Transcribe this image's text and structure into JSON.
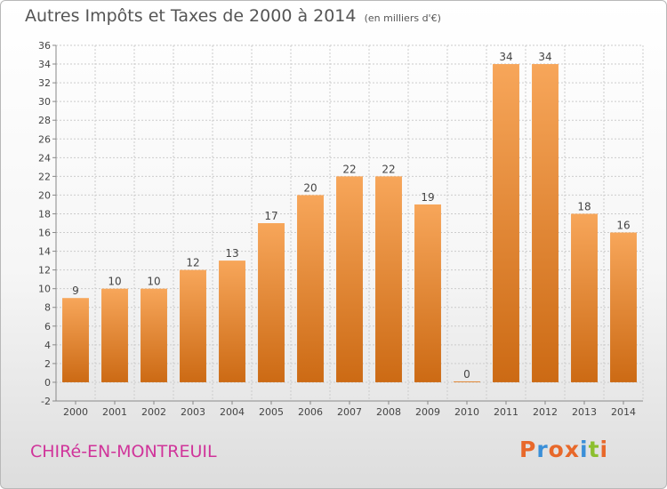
{
  "header": {
    "title": "Autres Impôts et Taxes de 2000 à 2014",
    "unit": "(en milliers d'€)"
  },
  "footer": {
    "city": "CHIRé-EN-MONTREUIL",
    "logo_text": "Proxiti",
    "logo_colors": [
      "#e8682a",
      "#3a8fd8",
      "#e8682a",
      "#e8682a",
      "#3a8fd8",
      "#8cbf2e",
      "#e8682a"
    ]
  },
  "colors": {
    "bar_light": "#f7a65a",
    "bar_dark": "#cc6a14",
    "grid": "#cccccc",
    "axis": "#888888",
    "label": "#444444"
  },
  "chart_data": {
    "type": "bar",
    "title": "Autres Impôts et Taxes de 2000 à 2014",
    "subtitle": "(en milliers d'€)",
    "xlabel": "",
    "ylabel": "",
    "categories": [
      "2000",
      "2001",
      "2002",
      "2003",
      "2004",
      "2005",
      "2006",
      "2007",
      "2008",
      "2009",
      "2010",
      "2011",
      "2012",
      "2013",
      "2014"
    ],
    "values": [
      9,
      10,
      10,
      12,
      13,
      17,
      20,
      22,
      22,
      19,
      0,
      34,
      34,
      18,
      16
    ],
    "ylim": [
      -2,
      36
    ],
    "yticks": [
      -2,
      0,
      2,
      4,
      6,
      8,
      10,
      12,
      14,
      16,
      18,
      20,
      22,
      24,
      26,
      28,
      30,
      32,
      34,
      36
    ],
    "grid": true,
    "legend": "none"
  }
}
